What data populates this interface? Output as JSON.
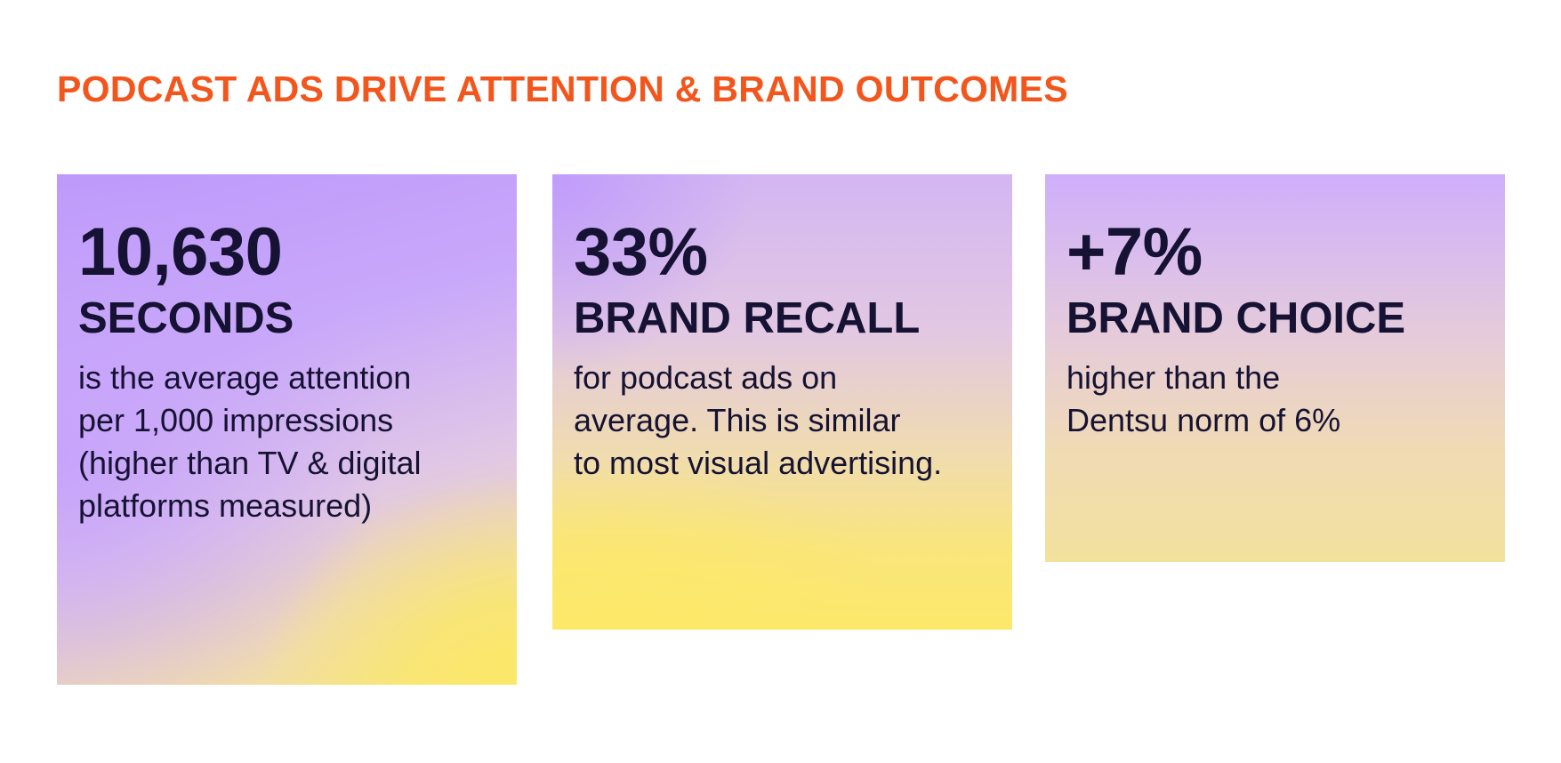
{
  "headline": "PODCAST ADS DRIVE ATTENTION & BRAND OUTCOMES",
  "cards": [
    {
      "stat": "10,630",
      "label": "SECONDS",
      "lines": [
        "is the average attention",
        "per 1,000 impressions",
        "(higher than TV & digital",
        "platforms measured)"
      ]
    },
    {
      "stat": "33%",
      "label": "BRAND RECALL",
      "lines": [
        "for podcast ads on",
        "average. This is similar",
        "to most visual advertising."
      ]
    },
    {
      "stat": "+7%",
      "label": "BRAND CHOICE",
      "lines": [
        "higher than the",
        "Dentsu norm of 6%"
      ]
    }
  ],
  "colors": {
    "headline": "#f2561d",
    "text": "#161233",
    "gradient_purple": "#bd99fb",
    "gradient_yellow": "#fde86a"
  }
}
